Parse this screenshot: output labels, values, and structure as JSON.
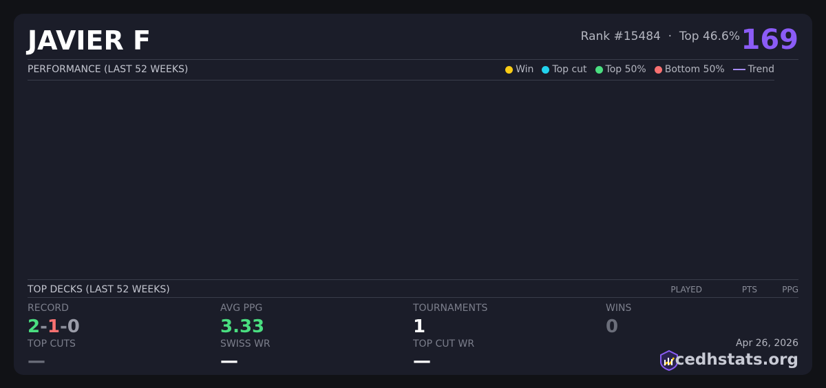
{
  "header": {
    "name": "JAVIER F",
    "rank": "Rank #15484",
    "separator": "·",
    "top": "Top 46.6%",
    "score": "169"
  },
  "performance": {
    "title": "PERFORMANCE (LAST 52 WEEKS)",
    "legend": [
      {
        "label": "Win",
        "color": "#facc15",
        "shape": "dot"
      },
      {
        "label": "Top cut",
        "color": "#22d3ee",
        "shape": "dot"
      },
      {
        "label": "Top 50%",
        "color": "#4ade80",
        "shape": "dot"
      },
      {
        "label": "Bottom 50%",
        "color": "#f87171",
        "shape": "dot"
      },
      {
        "label": "Trend",
        "color": "#a78bfa",
        "shape": "line"
      }
    ]
  },
  "decks": {
    "title": "TOP DECKS (LAST 52 WEEKS)",
    "columns": [
      "PLAYED",
      "PTS",
      "PPG"
    ]
  },
  "stats": {
    "record": {
      "label": "RECORD",
      "wins": "2",
      "losses": "1",
      "draws": "0",
      "separator": "-"
    },
    "avg_ppg": {
      "label": "AVG PPG",
      "value": "3.33"
    },
    "tournaments": {
      "label": "TOURNAMENTS",
      "value": "1"
    },
    "wins": {
      "label": "WINS",
      "value": "0"
    },
    "top_cuts": {
      "label": "TOP CUTS",
      "value": "—"
    },
    "swiss_wr": {
      "label": "SWISS WR",
      "value": "—"
    },
    "top_cut_wr": {
      "label": "TOP CUT WR",
      "value": "—"
    }
  },
  "footer": {
    "date": "Apr 26, 2026",
    "site": "cedhstats.org"
  }
}
